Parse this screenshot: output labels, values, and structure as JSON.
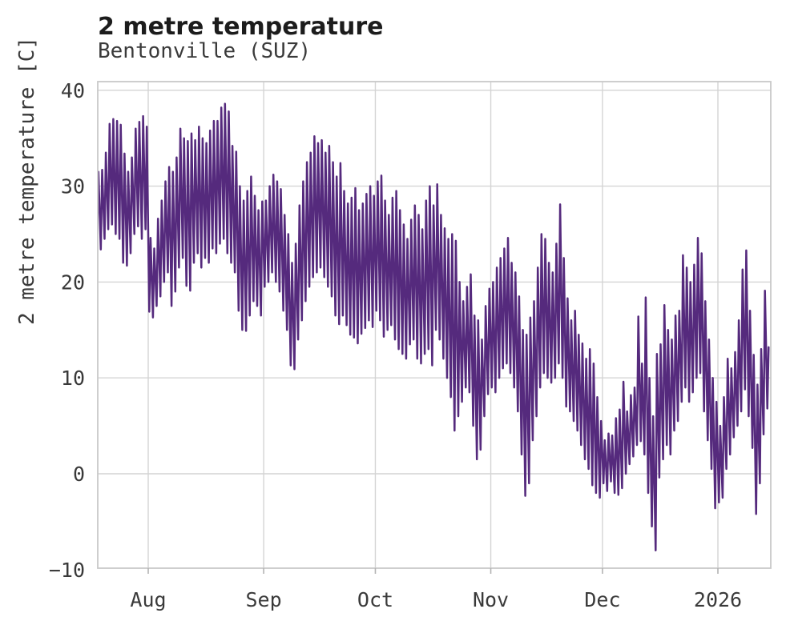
{
  "figure": {
    "title": "2 metre temperature",
    "subtitle": "Bentonville (SUZ)",
    "y_axis_label": "2 metre temperature [C]"
  },
  "chart_data": {
    "type": "line",
    "title": "2 metre temperature",
    "subtitle": "Bentonville (SUZ)",
    "xlabel": "",
    "ylabel": "2 metre temperature [C]",
    "ylim": [
      -10.2,
      40.8
    ],
    "grid": true,
    "legend_position": "none",
    "series_name": "2 metre temperature",
    "resolution": "daily min/max envelope of an hourly series (diurnal zigzag)",
    "x_start_date": "2025-07-18",
    "x_end_date": "2026-01-14",
    "x_ticks": [
      {
        "label": "Aug",
        "day": 14
      },
      {
        "label": "Sep",
        "day": 45
      },
      {
        "label": "Oct",
        "day": 75
      },
      {
        "label": "Nov",
        "day": 106
      },
      {
        "label": "Dec",
        "day": 136
      },
      {
        "label": "2026",
        "day": 167
      }
    ],
    "y_ticks": [
      {
        "value": -10,
        "label": "−10"
      },
      {
        "value": 0,
        "label": "0"
      },
      {
        "value": 10,
        "label": "10"
      },
      {
        "value": 20,
        "label": "20"
      },
      {
        "value": 30,
        "label": "30"
      },
      {
        "value": 40,
        "label": "40"
      }
    ],
    "daily_tmax": [
      31.5,
      31.7,
      33.5,
      36.5,
      37.0,
      36.8,
      36.4,
      33.4,
      31.5,
      33.0,
      36.0,
      36.7,
      37.3,
      36.2,
      24.6,
      23.5,
      26.6,
      28.5,
      30.5,
      32.0,
      31.5,
      33.0,
      36.0,
      35.0,
      34.7,
      35.5,
      34.8,
      36.2,
      35.0,
      34.5,
      35.8,
      36.8,
      36.8,
      38.2,
      38.6,
      37.8,
      34.2,
      33.6,
      30.0,
      28.5,
      29.5,
      31.0,
      29.0,
      27.5,
      28.4,
      28.5,
      30.0,
      31.2,
      30.5,
      29.7,
      27.0,
      25.0,
      22.0,
      24.0,
      28.0,
      30.5,
      32.5,
      33.5,
      35.2,
      34.5,
      34.8,
      33.5,
      34.2,
      32.5,
      31.0,
      32.4,
      29.5,
      28.2,
      28.8,
      29.8,
      27.5,
      28.2,
      29.2,
      30.0,
      29.0,
      30.5,
      31.1,
      28.5,
      27.0,
      28.8,
      29.5,
      27.5,
      26.0,
      24.5,
      26.5,
      28.0,
      27.0,
      25.5,
      28.5,
      30.0,
      28.0,
      30.2,
      27.0,
      25.6,
      24.5,
      25.0,
      24.3,
      20.0,
      18.0,
      19.5,
      20.8,
      16.5,
      16.0,
      14.0,
      17.5,
      19.3,
      20.0,
      21.5,
      22.5,
      23.5,
      24.6,
      22.0,
      21.0,
      18.5,
      15.0,
      14.5,
      16.3,
      18.0,
      21.5,
      25.0,
      24.5,
      22.0,
      21.0,
      24.0,
      28.1,
      22.5,
      18.3,
      16.0,
      17.0,
      14.5,
      13.6,
      12.0,
      13.0,
      11.5,
      8.0,
      5.5,
      3.5,
      4.2,
      4.0,
      5.8,
      6.7,
      9.6,
      6.5,
      8.2,
      9.0,
      16.4,
      11.5,
      18.4,
      10.0,
      6.0,
      12.5,
      13.5,
      17.6,
      15.0,
      14.0,
      16.5,
      17.0,
      22.8,
      21.5,
      20.0,
      21.8,
      24.6,
      23.0,
      18.0,
      14.0,
      10.0,
      7.5,
      5.0,
      8.0,
      12.0,
      11.0,
      12.7,
      16.0,
      21.3,
      23.3,
      17.0,
      12.4,
      9.3,
      13.0,
      19.1,
      13.2
    ],
    "daily_tmin": [
      24.0,
      23.4,
      24.5,
      25.5,
      26.0,
      25.0,
      24.5,
      22.0,
      21.7,
      23.0,
      25.0,
      25.8,
      24.5,
      25.5,
      16.9,
      16.3,
      17.5,
      18.5,
      20.0,
      21.0,
      17.5,
      19.0,
      21.5,
      22.5,
      19.6,
      19.1,
      22.0,
      23.0,
      21.5,
      22.5,
      22.0,
      23.5,
      23.0,
      24.0,
      24.5,
      23.0,
      22.0,
      21.0,
      17.0,
      15.0,
      14.9,
      16.5,
      18.0,
      17.5,
      16.5,
      19.5,
      20.0,
      21.0,
      20.0,
      19.0,
      17.0,
      15.0,
      11.3,
      10.9,
      14.0,
      16.0,
      18.0,
      19.5,
      20.5,
      21.0,
      21.5,
      20.5,
      19.5,
      18.5,
      16.5,
      15.6,
      16.5,
      15.5,
      14.5,
      14.2,
      13.6,
      14.6,
      15.2,
      16.0,
      15.3,
      17.0,
      16.0,
      14.3,
      15.0,
      15.5,
      14.0,
      13.0,
      12.5,
      12.0,
      13.5,
      14.0,
      12.0,
      11.5,
      12.5,
      13.0,
      11.3,
      15.0,
      14.0,
      12.0,
      10.0,
      8.0,
      4.5,
      6.0,
      7.5,
      9.0,
      8.5,
      5.0,
      1.5,
      2.5,
      6.0,
      8.3,
      9.0,
      8.5,
      10.0,
      11.0,
      11.5,
      10.5,
      9.0,
      6.5,
      2.0,
      -2.3,
      -1.0,
      3.5,
      6.0,
      9.0,
      10.5,
      10.0,
      9.5,
      10.0,
      11.5,
      10.0,
      7.0,
      6.5,
      5.5,
      4.5,
      3.0,
      1.5,
      0.5,
      -1.2,
      -2.0,
      -2.5,
      -1.0,
      -1.8,
      -0.8,
      -2.0,
      -2.2,
      -1.5,
      0.0,
      1.0,
      1.8,
      3.0,
      3.4,
      2.0,
      -2.0,
      -5.5,
      -8.0,
      -0.4,
      1.5,
      3.0,
      2.0,
      4.5,
      5.5,
      7.5,
      9.0,
      7.5,
      8.5,
      10.0,
      10.5,
      6.5,
      3.5,
      0.5,
      -3.6,
      -3.0,
      -2.5,
      0.5,
      2.0,
      3.8,
      5.0,
      6.5,
      8.8,
      6.0,
      2.7,
      -4.2,
      -1.0,
      4.1,
      6.8
    ],
    "colors": {
      "line": "#552a7d",
      "grid": "#d4d4d4",
      "spine": "#c9c9c9",
      "tick_mark": "#b3b3b3",
      "title_text": "#1c1c1c",
      "text": "#3a3a3a"
    }
  }
}
